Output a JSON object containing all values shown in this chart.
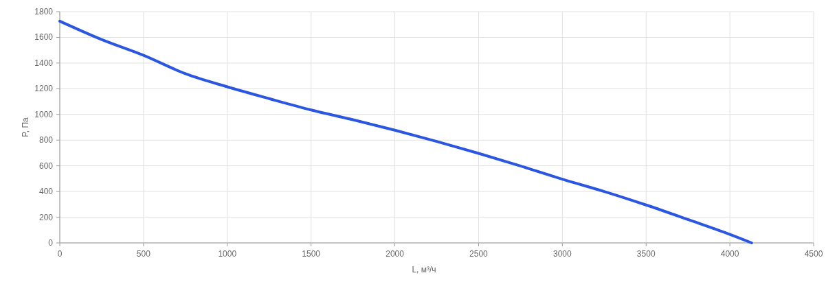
{
  "chart_data": {
    "type": "line",
    "xlabel": "L, м³/ч",
    "ylabel": "P, Па",
    "x": [
      0,
      250,
      500,
      750,
      1000,
      1250,
      1500,
      1750,
      2000,
      2250,
      2500,
      2750,
      3000,
      3250,
      3500,
      3750,
      4000,
      4130
    ],
    "series": [
      {
        "color": "#2a56e2",
        "values": [
          1726,
          1583,
          1460,
          1317,
          1215,
          1123,
          1035,
          959,
          877,
          790,
          697,
          599,
          496,
          400,
          295,
          182,
          66,
          0
        ]
      }
    ],
    "xlim": [
      0,
      4500
    ],
    "xticks": [
      0,
      500,
      1000,
      1500,
      2000,
      2500,
      3000,
      3500,
      4000,
      4500
    ],
    "ylim": [
      0,
      1800
    ],
    "yticks": [
      0,
      200,
      400,
      600,
      800,
      1000,
      1200,
      1400,
      1600,
      1800
    ],
    "grid": true,
    "marker": "none",
    "line_style": "solid"
  }
}
